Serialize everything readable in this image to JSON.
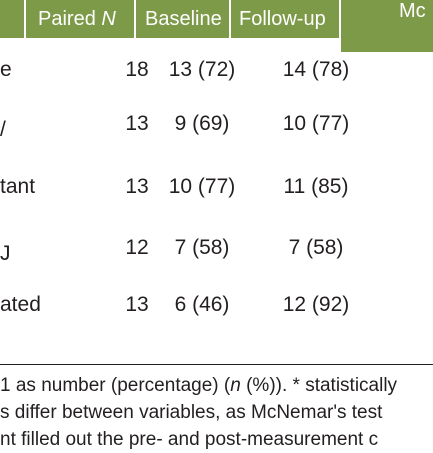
{
  "table": {
    "headers": {
      "col0": "",
      "col1_text": "Paired ",
      "col1_italic": "N",
      "col2": "Baseline",
      "col3": "Follow-up",
      "col4": "Mc"
    },
    "rows": [
      {
        "label": "e",
        "n": "18",
        "baseline": "13 (72)",
        "followup": "14 (78)"
      },
      {
        "label": "/",
        "n": "13",
        "baseline": "9 (69)",
        "followup": "10 (77)"
      },
      {
        "label": "tant",
        "n": "13",
        "baseline": "10 (77)",
        "followup": "11 (85)"
      },
      {
        "label": "J",
        "n": "12",
        "baseline": "7 (58)",
        "followup": "7 (58)"
      },
      {
        "label": "ated",
        "n": "13",
        "baseline": "6 (46)",
        "followup": "12 (92)"
      }
    ]
  },
  "caption": {
    "line1_a": "1 as number (percentage) (",
    "line1_italic": "n",
    "line1_b": " (%)). * statistically",
    "line2": "s differ between variables, as McNemar's test",
    "line3": "nt filled out the pre- and post-measurement c"
  }
}
